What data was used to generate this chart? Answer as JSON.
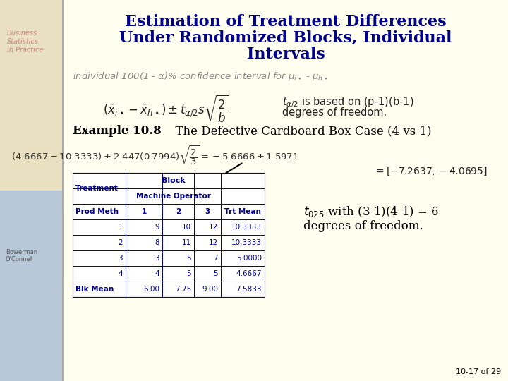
{
  "title_line1": "Estimation of Treatment Differences",
  "title_line2": "Under Randomized Blocks, Individual",
  "title_line3": "Intervals",
  "title_color": "#00008B",
  "bg_color": "#FFFEF0",
  "subtitle_color": "#888888",
  "body_color": "#111111",
  "table_color": "#00008B",
  "page_num": "10-17 of 29",
  "table_rows": [
    [
      "1",
      "9",
      "10",
      "12",
      "10.3333"
    ],
    [
      "2",
      "8",
      "11",
      "12",
      "10.3333"
    ],
    [
      "3",
      "3",
      "5",
      "7",
      "5.0000"
    ],
    [
      "4",
      "4",
      "5",
      "5",
      "4.6667"
    ]
  ],
  "table_blk_mean": [
    "Blk Mean",
    "6.00",
    "7.75",
    "9.00",
    "7.5833"
  ],
  "left_bg": "#E8E0C8",
  "left_text_color": "#C08070"
}
